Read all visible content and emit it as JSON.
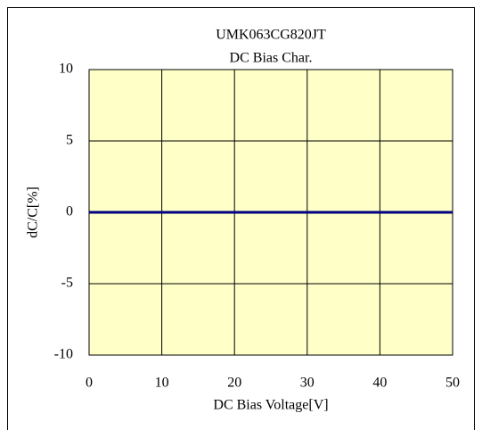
{
  "chart_data": {
    "type": "line",
    "title": "UMK063CG820JT",
    "subtitle": "DC Bias Char.",
    "x_label": "DC Bias Voltage[V]",
    "y_label": "dC/C[%]",
    "x": [
      0,
      10,
      20,
      30,
      40,
      50
    ],
    "series": [
      {
        "name": "UMK063CG820JT",
        "color": "#000080",
        "values": [
          0,
          0,
          0,
          0,
          0,
          0
        ]
      }
    ],
    "xlim": [
      0,
      50
    ],
    "xticks": [
      0,
      10,
      20,
      30,
      40,
      50
    ],
    "ylim": [
      -10,
      10
    ],
    "yticks": [
      -10,
      -5,
      0,
      5,
      10
    ],
    "grid": true
  }
}
